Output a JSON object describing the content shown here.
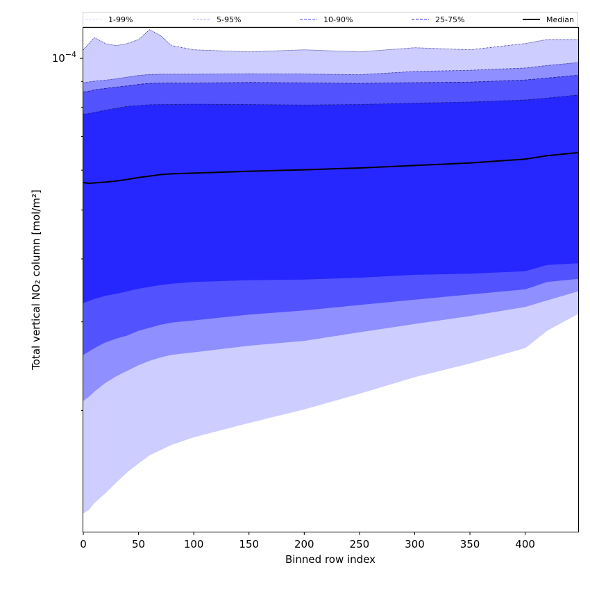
{
  "chart_data": {
    "type": "area",
    "xlabel": "Binned row index",
    "ylabel": "Total vertical NO₂ column [mol/m²]",
    "xlim": [
      0,
      448
    ],
    "ylim": [
      1.15e-05,
      0.000115
    ],
    "yscale": "log",
    "x_ticks": [
      0,
      50,
      100,
      150,
      200,
      250,
      300,
      350,
      400
    ],
    "x_tick_labels": [
      "0",
      "50",
      "100",
      "150",
      "200",
      "250",
      "300",
      "350",
      "400"
    ],
    "y_tick_major": {
      "value": 0.0001,
      "base": "10",
      "exponent": "−4"
    },
    "y_minor_ticks": [
      2e-05,
      3e-05,
      4e-05,
      5e-05,
      6e-05,
      7e-05,
      8e-05,
      9e-05
    ],
    "legend_position": "top",
    "legend": [
      {
        "label": "1-99%",
        "color": "#cdcdff",
        "style": "dotted"
      },
      {
        "label": "5-95%",
        "color": "#8f8fff",
        "style": "dotted"
      },
      {
        "label": "10-90%",
        "color": "#5252ff",
        "style": "dashed"
      },
      {
        "label": "25-75%",
        "color": "#2626ff",
        "style": "dashed"
      },
      {
        "label": "Median",
        "color": "#000000",
        "style": "solid"
      }
    ],
    "x": [
      0,
      5,
      10,
      20,
      30,
      40,
      50,
      60,
      70,
      80,
      100,
      150,
      200,
      250,
      300,
      350,
      400,
      420,
      448
    ],
    "series": [
      {
        "name": "1-99%",
        "role": "upper",
        "color": "#cdcdff",
        "values": [
          0.000104,
          0.000107,
          0.00011,
          0.000107,
          0.000106,
          0.000107,
          0.000109,
          0.000114,
          0.000111,
          0.000106,
          0.000104,
          0.000103,
          0.000104,
          0.000103,
          0.000105,
          0.000104,
          0.000107,
          0.000109,
          0.000109
        ]
      },
      {
        "name": "5-95%",
        "role": "upper",
        "color": "#8f8fff",
        "values": [
          8.95e-05,
          8.98e-05,
          9.01e-05,
          9.05e-05,
          9.11e-05,
          9.18e-05,
          9.25e-05,
          9.29e-05,
          9.3e-05,
          9.3e-05,
          9.3e-05,
          9.32e-05,
          9.31e-05,
          9.28e-05,
          9.42e-05,
          9.47e-05,
          9.57e-05,
          9.68e-05,
          9.81e-05
        ]
      },
      {
        "name": "10-90%",
        "role": "upper",
        "color": "#5252ff",
        "values": [
          8.58e-05,
          8.61e-05,
          8.66e-05,
          8.72e-05,
          8.77e-05,
          8.82e-05,
          8.88e-05,
          8.92e-05,
          8.93e-05,
          8.93e-05,
          8.93e-05,
          8.96e-05,
          8.94e-05,
          8.92e-05,
          8.95e-05,
          8.97e-05,
          9.06e-05,
          9.14e-05,
          9.26e-05
        ]
      },
      {
        "name": "25-75%",
        "role": "upper",
        "color": "#2626ff",
        "values": [
          7.75e-05,
          7.77e-05,
          7.81e-05,
          7.89e-05,
          7.96e-05,
          8.03e-05,
          8.06e-05,
          8.09e-05,
          8.1e-05,
          8.1e-05,
          8.11e-05,
          8.1e-05,
          8.08e-05,
          8.1e-05,
          8.15e-05,
          8.19e-05,
          8.27e-05,
          8.34e-05,
          8.46e-05
        ]
      },
      {
        "name": "Median",
        "role": "median",
        "color": "#000000",
        "values": [
          5.67e-05,
          5.65e-05,
          5.66e-05,
          5.68e-05,
          5.71e-05,
          5.75e-05,
          5.8e-05,
          5.84e-05,
          5.88e-05,
          5.9e-05,
          5.92e-05,
          5.97e-05,
          6.01e-05,
          6.06e-05,
          6.13e-05,
          6.2e-05,
          6.31e-05,
          6.41e-05,
          6.5e-05
        ]
      },
      {
        "name": "25-75%",
        "role": "lower",
        "color": "#2626ff",
        "values": [
          3.27e-05,
          3.3e-05,
          3.33e-05,
          3.38e-05,
          3.41e-05,
          3.45e-05,
          3.49e-05,
          3.52e-05,
          3.55e-05,
          3.57e-05,
          3.6e-05,
          3.63e-05,
          3.64e-05,
          3.67e-05,
          3.72e-05,
          3.74e-05,
          3.78e-05,
          3.89e-05,
          3.92e-05
        ]
      },
      {
        "name": "10-90%",
        "role": "lower",
        "color": "#5252ff",
        "values": [
          2.58e-05,
          2.62e-05,
          2.66e-05,
          2.73e-05,
          2.78e-05,
          2.82e-05,
          2.88e-05,
          2.92e-05,
          2.96e-05,
          2.99e-05,
          3.02e-05,
          3.1e-05,
          3.16e-05,
          3.24e-05,
          3.32e-05,
          3.4e-05,
          3.48e-05,
          3.6e-05,
          3.65e-05
        ]
      },
      {
        "name": "5-95%",
        "role": "lower",
        "color": "#8f8fff",
        "values": [
          2.09e-05,
          2.13e-05,
          2.18e-05,
          2.27e-05,
          2.34e-05,
          2.4e-05,
          2.46e-05,
          2.51e-05,
          2.55e-05,
          2.58e-05,
          2.61e-05,
          2.69e-05,
          2.75e-05,
          2.86e-05,
          2.97e-05,
          3.08e-05,
          3.21e-05,
          3.31e-05,
          3.45e-05
        ]
      },
      {
        "name": "1-99%",
        "role": "lower",
        "color": "#cdcdff",
        "values": [
          1.25e-05,
          1.27e-05,
          1.31e-05,
          1.37e-05,
          1.44e-05,
          1.51e-05,
          1.57e-05,
          1.63e-05,
          1.67e-05,
          1.71e-05,
          1.77e-05,
          1.89e-05,
          2.01e-05,
          2.16e-05,
          2.33e-05,
          2.48e-05,
          2.66e-05,
          2.88e-05,
          3.11e-05
        ]
      }
    ]
  }
}
